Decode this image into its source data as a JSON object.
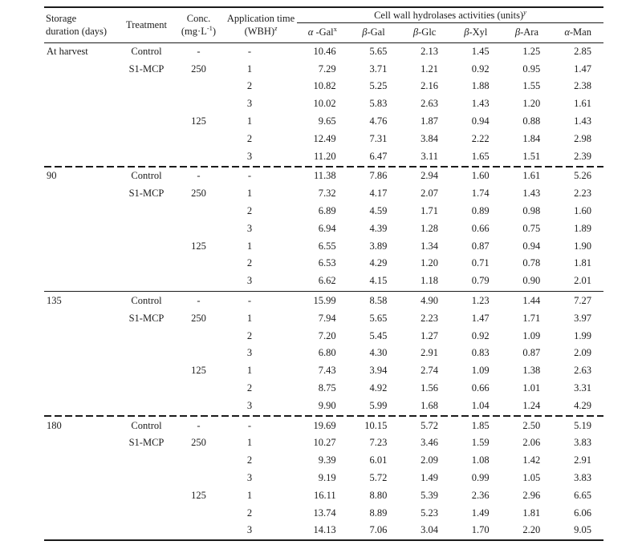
{
  "table": {
    "header": {
      "storage_line1": "Storage",
      "storage_line2": "duration (days)",
      "treatment": "Treatment",
      "conc_line1": "Conc.",
      "conc_line2_pre": "(mg·L",
      "conc_line2_sup": "-1",
      "conc_line2_post": ")",
      "apptime_line1": "Application time",
      "apptime_line2_pre": "(WBH)",
      "apptime_line2_sup": "z",
      "span_title": "Cell wall hydrolases activities (units)",
      "span_sup": "y",
      "enzymes": [
        {
          "greek": "α",
          "rest": " -Gal",
          "sup": "x"
        },
        {
          "greek": "β",
          "rest": "-Gal",
          "sup": ""
        },
        {
          "greek": "β",
          "rest": "-Glc",
          "sup": ""
        },
        {
          "greek": "β",
          "rest": "-Xyl",
          "sup": ""
        },
        {
          "greek": "β",
          "rest": "-Ara",
          "sup": ""
        },
        {
          "greek": "α",
          "rest": "-Man",
          "sup": ""
        }
      ]
    },
    "groups": [
      {
        "duration": "At harvest",
        "separator_top": "none",
        "rows": [
          {
            "treatment": "Control",
            "conc": "-",
            "time": "-",
            "values": [
              "10.46",
              "5.65",
              "2.13",
              "1.45",
              "1.25",
              "2.85"
            ]
          },
          {
            "treatment": "S1-MCP",
            "conc": "250",
            "time": "1",
            "values": [
              "7.29",
              "3.71",
              "1.21",
              "0.92",
              "0.95",
              "1.47"
            ]
          },
          {
            "treatment": "",
            "conc": "",
            "time": "2",
            "values": [
              "10.82",
              "5.25",
              "2.16",
              "1.88",
              "1.55",
              "2.38"
            ]
          },
          {
            "treatment": "",
            "conc": "",
            "time": "3",
            "values": [
              "10.02",
              "5.83",
              "2.63",
              "1.43",
              "1.20",
              "1.61"
            ]
          },
          {
            "treatment": "",
            "conc": "125",
            "time": "1",
            "values": [
              "9.65",
              "4.76",
              "1.87",
              "0.94",
              "0.88",
              "1.43"
            ]
          },
          {
            "treatment": "",
            "conc": "",
            "time": "2",
            "values": [
              "12.49",
              "7.31",
              "3.84",
              "2.22",
              "1.84",
              "2.98"
            ]
          },
          {
            "treatment": "",
            "conc": "",
            "time": "3",
            "values": [
              "11.20",
              "6.47",
              "3.11",
              "1.65",
              "1.51",
              "2.39"
            ]
          }
        ]
      },
      {
        "duration": "90",
        "separator_top": "dashed",
        "rows": [
          {
            "treatment": "Control",
            "conc": "-",
            "time": "-",
            "values": [
              "11.38",
              "7.86",
              "2.94",
              "1.60",
              "1.61",
              "5.26"
            ]
          },
          {
            "treatment": "S1-MCP",
            "conc": "250",
            "time": "1",
            "values": [
              "7.32",
              "4.17",
              "2.07",
              "1.74",
              "1.43",
              "2.23"
            ]
          },
          {
            "treatment": "",
            "conc": "",
            "time": "2",
            "values": [
              "6.89",
              "4.59",
              "1.71",
              "0.89",
              "0.98",
              "1.60"
            ]
          },
          {
            "treatment": "",
            "conc": "",
            "time": "3",
            "values": [
              "6.94",
              "4.39",
              "1.28",
              "0.66",
              "0.75",
              "1.89"
            ]
          },
          {
            "treatment": "",
            "conc": "125",
            "time": "1",
            "values": [
              "6.55",
              "3.89",
              "1.34",
              "0.87",
              "0.94",
              "1.90"
            ]
          },
          {
            "treatment": "",
            "conc": "",
            "time": "2",
            "values": [
              "6.53",
              "4.29",
              "1.20",
              "0.71",
              "0.78",
              "1.81"
            ]
          },
          {
            "treatment": "",
            "conc": "",
            "time": "3",
            "values": [
              "6.62",
              "4.15",
              "1.18",
              "0.79",
              "0.90",
              "2.01"
            ]
          }
        ]
      },
      {
        "duration": "135",
        "separator_top": "solid",
        "rows": [
          {
            "treatment": "Control",
            "conc": "-",
            "time": "-",
            "values": [
              "15.99",
              "8.58",
              "4.90",
              "1.23",
              "1.44",
              "7.27"
            ]
          },
          {
            "treatment": "S1-MCP",
            "conc": "250",
            "time": "1",
            "values": [
              "7.94",
              "5.65",
              "2.23",
              "1.47",
              "1.71",
              "3.97"
            ]
          },
          {
            "treatment": "",
            "conc": "",
            "time": "2",
            "values": [
              "7.20",
              "5.45",
              "1.27",
              "0.92",
              "1.09",
              "1.99"
            ]
          },
          {
            "treatment": "",
            "conc": "",
            "time": "3",
            "values": [
              "6.80",
              "4.30",
              "2.91",
              "0.83",
              "0.87",
              "2.09"
            ]
          },
          {
            "treatment": "",
            "conc": "125",
            "time": "1",
            "values": [
              "7.43",
              "3.94",
              "2.74",
              "1.09",
              "1.38",
              "2.63"
            ]
          },
          {
            "treatment": "",
            "conc": "",
            "time": "2",
            "values": [
              "8.75",
              "4.92",
              "1.56",
              "0.66",
              "1.01",
              "3.31"
            ]
          },
          {
            "treatment": "",
            "conc": "",
            "time": "3",
            "values": [
              "9.90",
              "5.99",
              "1.68",
              "1.04",
              "1.24",
              "4.29"
            ]
          }
        ]
      },
      {
        "duration": "180",
        "separator_top": "dashed",
        "rows": [
          {
            "treatment": "Control",
            "conc": "-",
            "time": "-",
            "values": [
              "19.69",
              "10.15",
              "5.72",
              "1.85",
              "2.50",
              "5.19"
            ]
          },
          {
            "treatment": "S1-MCP",
            "conc": "250",
            "time": "1",
            "values": [
              "10.27",
              "7.23",
              "3.46",
              "1.59",
              "2.06",
              "3.83"
            ]
          },
          {
            "treatment": "",
            "conc": "",
            "time": "2",
            "values": [
              "9.39",
              "6.01",
              "2.09",
              "1.08",
              "1.42",
              "2.91"
            ]
          },
          {
            "treatment": "",
            "conc": "",
            "time": "3",
            "values": [
              "9.19",
              "5.72",
              "1.49",
              "0.99",
              "1.05",
              "3.83"
            ]
          },
          {
            "treatment": "",
            "conc": "125",
            "time": "1",
            "values": [
              "16.11",
              "8.80",
              "5.39",
              "2.36",
              "2.96",
              "6.65"
            ]
          },
          {
            "treatment": "",
            "conc": "",
            "time": "2",
            "values": [
              "13.74",
              "8.89",
              "5.23",
              "1.49",
              "1.81",
              "6.06"
            ]
          },
          {
            "treatment": "",
            "conc": "",
            "time": "3",
            "values": [
              "14.13",
              "7.06",
              "3.04",
              "1.70",
              "2.20",
              "9.05"
            ]
          }
        ]
      }
    ]
  }
}
